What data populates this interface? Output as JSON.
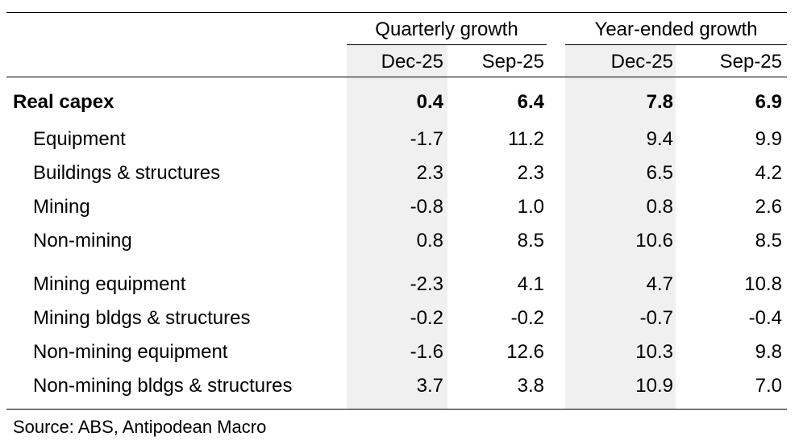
{
  "table": {
    "groups": [
      "Quarterly growth",
      "Year-ended growth"
    ],
    "columns": [
      "Dec-25",
      "Sep-25",
      "Dec-25",
      "Sep-25"
    ],
    "rows": [
      {
        "label": "Real capex",
        "values": [
          "0.4",
          "6.4",
          "7.8",
          "6.9"
        ]
      },
      {
        "label": "Equipment",
        "values": [
          "-1.7",
          "11.2",
          "9.4",
          "9.9"
        ]
      },
      {
        "label": "Buildings & structures",
        "values": [
          "2.3",
          "2.3",
          "6.5",
          "4.2"
        ]
      },
      {
        "label": "Mining",
        "values": [
          "-0.8",
          "1.0",
          "0.8",
          "2.6"
        ]
      },
      {
        "label": "Non-mining",
        "values": [
          "0.8",
          "8.5",
          "10.6",
          "8.5"
        ]
      },
      {
        "label": "Mining equipment",
        "values": [
          "-2.3",
          "4.1",
          "4.7",
          "10.8"
        ]
      },
      {
        "label": "Mining bldgs & structures",
        "values": [
          "-0.2",
          "-0.2",
          "-0.7",
          "-0.4"
        ]
      },
      {
        "label": "Non-mining equipment",
        "values": [
          "-1.6",
          "12.6",
          "10.3",
          "9.8"
        ]
      },
      {
        "label": "Non-mining bldgs & structures",
        "values": [
          "3.7",
          "3.8",
          "10.9",
          "7.0"
        ]
      }
    ]
  },
  "source": "Source: ABS, Antipodean Macro"
}
